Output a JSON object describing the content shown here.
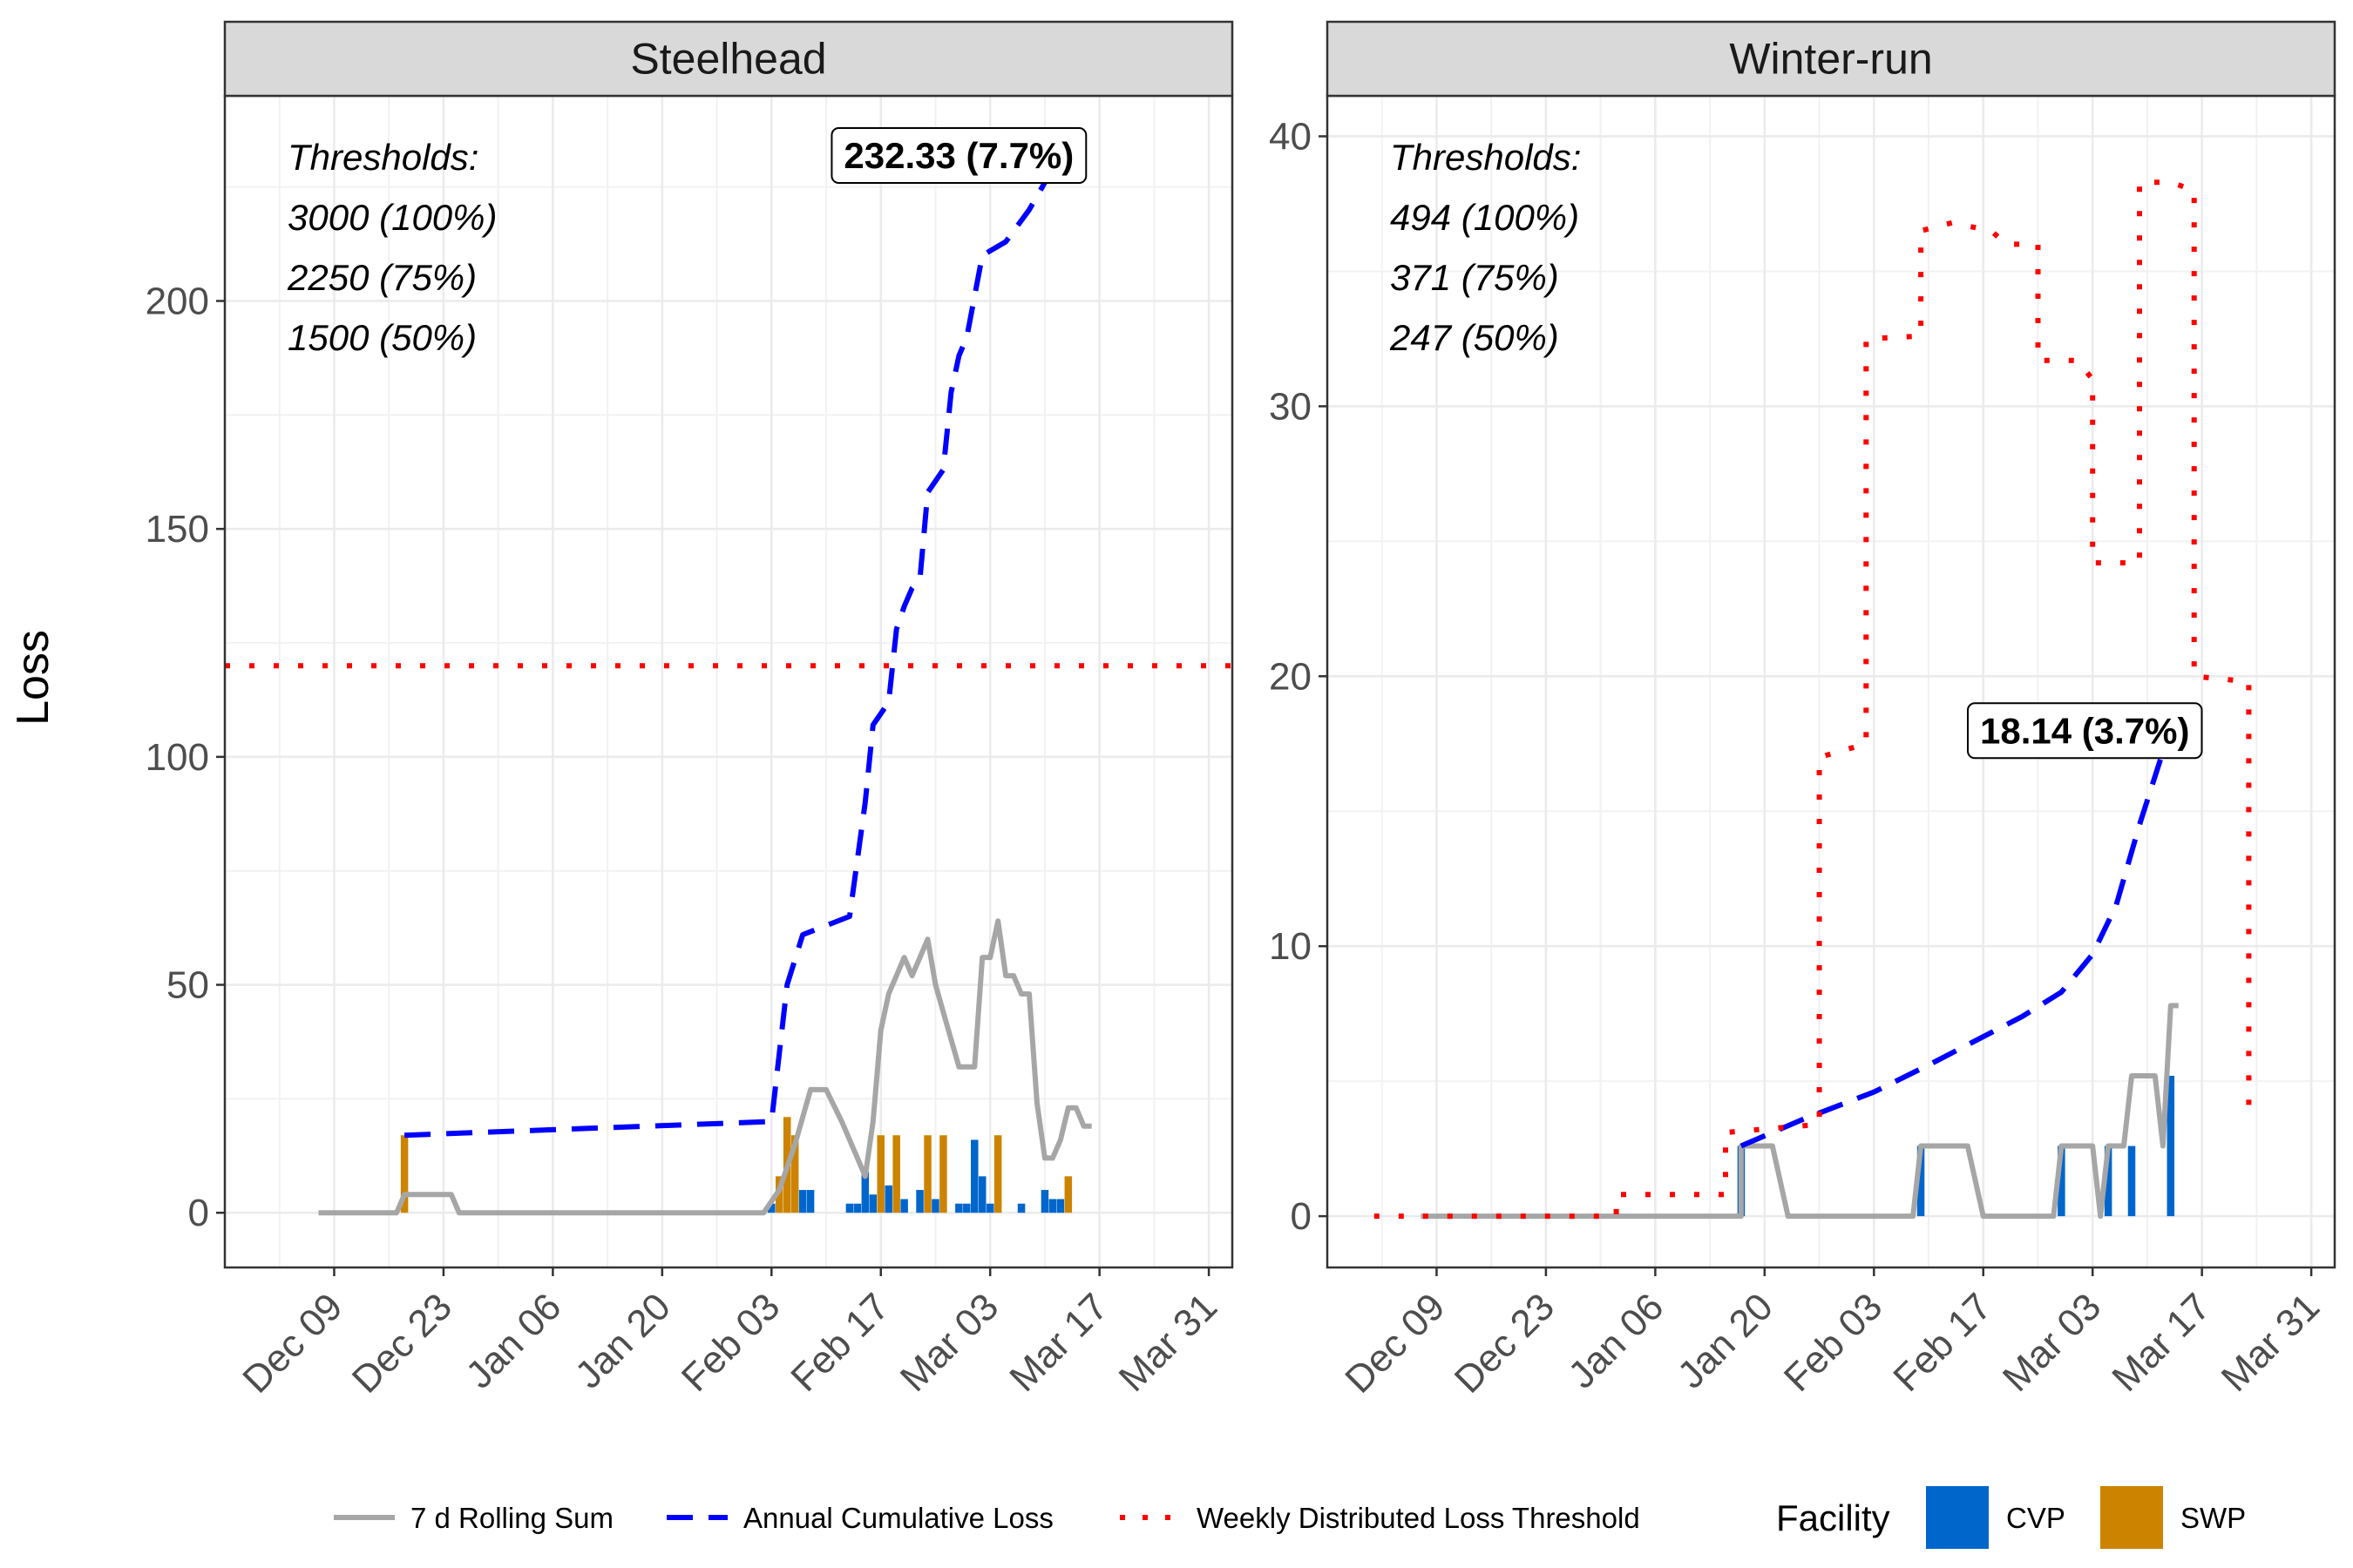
{
  "chart_data": [
    {
      "type": "line",
      "title": "Steelhead",
      "ylabel": "Loss",
      "ylim": [
        -12,
        245
      ],
      "xlim": [
        "2024-11-25",
        "2025-04-03"
      ],
      "yticks": [
        0,
        50,
        100,
        150,
        200
      ],
      "xtick_labels": [
        "Dec 09",
        "Dec 23",
        "Jan 06",
        "Jan 20",
        "Feb 03",
        "Feb 17",
        "Mar 03",
        "Mar 17",
        "Mar 31"
      ],
      "xtick_dates": [
        "2024-12-09",
        "2024-12-23",
        "2025-01-06",
        "2025-01-20",
        "2025-02-03",
        "2025-02-17",
        "2025-03-03",
        "2025-03-17",
        "2025-03-31"
      ],
      "grid": true,
      "threshold_text": [
        "Thresholds:",
        "3000 (100%)",
        "2250 (75%)",
        "1500 (50%)"
      ],
      "callout": {
        "label": "232.33 (7.7%)",
        "date": "2025-02-27",
        "value": 232
      },
      "series": [
        {
          "name": "7 d Rolling Sum",
          "style": "solid",
          "color": "#A6A6A6",
          "points": [
            [
              "2024-12-07",
              0
            ],
            [
              "2024-12-17",
              0
            ],
            [
              "2024-12-18",
              4
            ],
            [
              "2024-12-24",
              4
            ],
            [
              "2024-12-25",
              0
            ],
            [
              "2025-02-02",
              0
            ],
            [
              "2025-02-04",
              5
            ],
            [
              "2025-02-06",
              15
            ],
            [
              "2025-02-08",
              27
            ],
            [
              "2025-02-10",
              27
            ],
            [
              "2025-02-12",
              20
            ],
            [
              "2025-02-14",
              12
            ],
            [
              "2025-02-15",
              8
            ],
            [
              "2025-02-16",
              20
            ],
            [
              "2025-02-17",
              40
            ],
            [
              "2025-02-18",
              48
            ],
            [
              "2025-02-20",
              56
            ],
            [
              "2025-02-21",
              52
            ],
            [
              "2025-02-22",
              56
            ],
            [
              "2025-02-23",
              60
            ],
            [
              "2025-02-24",
              50
            ],
            [
              "2025-02-25",
              44
            ],
            [
              "2025-02-27",
              32
            ],
            [
              "2025-03-01",
              32
            ],
            [
              "2025-03-02",
              56
            ],
            [
              "2025-03-03",
              56
            ],
            [
              "2025-03-04",
              64
            ],
            [
              "2025-03-05",
              52
            ],
            [
              "2025-03-06",
              52
            ],
            [
              "2025-03-07",
              48
            ],
            [
              "2025-03-08",
              48
            ],
            [
              "2025-03-09",
              24
            ],
            [
              "2025-03-10",
              12
            ],
            [
              "2025-03-11",
              12
            ],
            [
              "2025-03-12",
              16
            ],
            [
              "2025-03-13",
              23
            ],
            [
              "2025-03-14",
              23
            ],
            [
              "2025-03-15",
              19
            ],
            [
              "2025-03-16",
              19
            ]
          ]
        },
        {
          "name": "Annual Cumulative Loss",
          "style": "dashed",
          "color": "#0000FF",
          "points": [
            [
              "2024-12-18",
              17
            ],
            [
              "2025-02-03",
              20
            ],
            [
              "2025-02-05",
              50
            ],
            [
              "2025-02-07",
              61
            ],
            [
              "2025-02-13",
              65
            ],
            [
              "2025-02-15",
              90
            ],
            [
              "2025-02-16",
              107
            ],
            [
              "2025-02-18",
              112
            ],
            [
              "2025-02-19",
              128
            ],
            [
              "2025-02-20",
              133
            ],
            [
              "2025-02-21",
              137
            ],
            [
              "2025-02-22",
              139
            ],
            [
              "2025-02-23",
              158
            ],
            [
              "2025-02-25",
              163
            ],
            [
              "2025-02-26",
              180
            ],
            [
              "2025-02-27",
              188
            ],
            [
              "2025-02-28",
              192
            ],
            [
              "2025-03-02",
              210
            ],
            [
              "2025-03-05",
              213
            ],
            [
              "2025-03-08",
              220
            ],
            [
              "2025-03-12",
              232
            ]
          ]
        },
        {
          "name": "Weekly Distributed Loss Threshold",
          "style": "dotted",
          "color": "#FF0000",
          "points": [
            [
              "2024-11-25",
              120
            ],
            [
              "2025-04-03",
              120
            ]
          ]
        }
      ],
      "bars": [
        {
          "facility": "SWP",
          "date": "2024-12-18",
          "value": 17
        },
        {
          "facility": "CVP",
          "date": "2025-02-03",
          "value": 2
        },
        {
          "facility": "SWP",
          "date": "2025-02-04",
          "value": 8
        },
        {
          "facility": "SWP",
          "date": "2025-02-05",
          "value": 21
        },
        {
          "facility": "SWP",
          "date": "2025-02-06",
          "value": 17
        },
        {
          "facility": "CVP",
          "date": "2025-02-07",
          "value": 5
        },
        {
          "facility": "CVP",
          "date": "2025-02-08",
          "value": 5
        },
        {
          "facility": "CVP",
          "date": "2025-02-13",
          "value": 2
        },
        {
          "facility": "CVP",
          "date": "2025-02-14",
          "value": 2
        },
        {
          "facility": "CVP",
          "date": "2025-02-15",
          "value": 9
        },
        {
          "facility": "CVP",
          "date": "2025-02-16",
          "value": 4
        },
        {
          "facility": "SWP",
          "date": "2025-02-17",
          "value": 17
        },
        {
          "facility": "CVP",
          "date": "2025-02-18",
          "value": 6
        },
        {
          "facility": "SWP",
          "date": "2025-02-19",
          "value": 17
        },
        {
          "facility": "CVP",
          "date": "2025-02-20",
          "value": 3
        },
        {
          "facility": "CVP",
          "date": "2025-02-22",
          "value": 5
        },
        {
          "facility": "SWP",
          "date": "2025-02-23",
          "value": 17
        },
        {
          "facility": "CVP",
          "date": "2025-02-24",
          "value": 3
        },
        {
          "facility": "SWP",
          "date": "2025-02-25",
          "value": 17
        },
        {
          "facility": "CVP",
          "date": "2025-02-27",
          "value": 2
        },
        {
          "facility": "CVP",
          "date": "2025-02-28",
          "value": 2
        },
        {
          "facility": "CVP",
          "date": "2025-03-01",
          "value": 16
        },
        {
          "facility": "CVP",
          "date": "2025-03-02",
          "value": 8
        },
        {
          "facility": "CVP",
          "date": "2025-03-03",
          "value": 2
        },
        {
          "facility": "SWP",
          "date": "2025-03-04",
          "value": 17
        },
        {
          "facility": "CVP",
          "date": "2025-03-07",
          "value": 2
        },
        {
          "facility": "CVP",
          "date": "2025-03-10",
          "value": 5
        },
        {
          "facility": "CVP",
          "date": "2025-03-11",
          "value": 3
        },
        {
          "facility": "CVP",
          "date": "2025-03-12",
          "value": 3
        },
        {
          "facility": "SWP",
          "date": "2025-03-13",
          "value": 8
        }
      ]
    },
    {
      "type": "line",
      "title": "Winter-run",
      "ylim": [
        -1.9,
        41.5
      ],
      "xlim": [
        "2024-11-25",
        "2025-04-03"
      ],
      "yticks": [
        0,
        10,
        20,
        30,
        40
      ],
      "xtick_labels": [
        "Dec 09",
        "Dec 23",
        "Jan 06",
        "Jan 20",
        "Feb 03",
        "Feb 17",
        "Mar 03",
        "Mar 17",
        "Mar 31"
      ],
      "xtick_dates": [
        "2024-12-09",
        "2024-12-23",
        "2025-01-06",
        "2025-01-20",
        "2025-02-03",
        "2025-02-17",
        "2025-03-03",
        "2025-03-17",
        "2025-03-31"
      ],
      "grid": true,
      "threshold_text": [
        "Thresholds:",
        "494 (100%)",
        "371 (75%)",
        "247 (50%)"
      ],
      "callout": {
        "label": "18.14 (3.7%)",
        "date": "2025-03-02",
        "value": 18
      },
      "series": [
        {
          "name": "7 d Rolling Sum",
          "style": "solid",
          "color": "#A6A6A6",
          "points": [
            [
              "2024-12-07",
              0
            ],
            [
              "2025-01-17",
              0
            ],
            [
              "2025-01-17",
              2.6
            ],
            [
              "2025-01-21",
              2.6
            ],
            [
              "2025-01-23",
              0
            ],
            [
              "2025-02-08",
              0
            ],
            [
              "2025-02-09",
              2.6
            ],
            [
              "2025-02-15",
              2.6
            ],
            [
              "2025-02-17",
              0
            ],
            [
              "2025-02-26",
              0
            ],
            [
              "2025-02-27",
              2.6
            ],
            [
              "2025-03-03",
              2.6
            ],
            [
              "2025-03-04",
              0
            ],
            [
              "2025-03-05",
              2.6
            ],
            [
              "2025-03-07",
              2.6
            ],
            [
              "2025-03-08",
              5.2
            ],
            [
              "2025-03-11",
              5.2
            ],
            [
              "2025-03-12",
              2.6
            ],
            [
              "2025-03-13",
              7.8
            ],
            [
              "2025-03-14",
              7.8
            ]
          ]
        },
        {
          "name": "Annual Cumulative Loss",
          "style": "dashed",
          "color": "#0000FF",
          "points": [
            [
              "2025-01-17",
              2.6
            ],
            [
              "2025-01-25",
              3.6
            ],
            [
              "2025-02-03",
              4.6
            ],
            [
              "2025-02-10",
              5.6
            ],
            [
              "2025-02-16",
              6.5
            ],
            [
              "2025-02-22",
              7.4
            ],
            [
              "2025-02-27",
              8.3
            ],
            [
              "2025-03-03",
              9.7
            ],
            [
              "2025-03-06",
              11.5
            ],
            [
              "2025-03-09",
              14.5
            ],
            [
              "2025-03-13",
              18.1
            ]
          ]
        },
        {
          "name": "Weekly Distributed Loss Threshold",
          "style": "dotted",
          "color": "#FF0000",
          "points": [
            [
              "2024-12-01",
              0
            ],
            [
              "2025-01-01",
              0
            ],
            [
              "2025-01-01",
              0.8
            ],
            [
              "2025-01-15",
              0.8
            ],
            [
              "2025-01-15",
              3.1
            ],
            [
              "2025-01-27",
              3.4
            ],
            [
              "2025-01-27",
              17.0
            ],
            [
              "2025-02-02",
              17.5
            ],
            [
              "2025-02-02",
              32.5
            ],
            [
              "2025-02-09",
              32.6
            ],
            [
              "2025-02-09",
              36.5
            ],
            [
              "2025-02-13",
              36.8
            ],
            [
              "2025-02-18",
              36.5
            ],
            [
              "2025-02-20",
              36.0
            ],
            [
              "2025-02-24",
              36.0
            ],
            [
              "2025-02-24",
              31.7
            ],
            [
              "2025-03-01",
              31.7
            ],
            [
              "2025-03-03",
              31.0
            ],
            [
              "2025-03-03",
              24.2
            ],
            [
              "2025-03-09",
              24.2
            ],
            [
              "2025-03-09",
              38.3
            ],
            [
              "2025-03-13",
              38.3
            ],
            [
              "2025-03-16",
              38.0
            ],
            [
              "2025-03-16",
              20.0
            ],
            [
              "2025-03-23",
              19.8
            ],
            [
              "2025-03-23",
              3.5
            ]
          ]
        }
      ],
      "bars": [
        {
          "facility": "CVP",
          "date": "2025-01-17",
          "value": 2.6
        },
        {
          "facility": "CVP",
          "date": "2025-02-09",
          "value": 2.6
        },
        {
          "facility": "CVP",
          "date": "2025-02-27",
          "value": 2.6
        },
        {
          "facility": "CVP",
          "date": "2025-03-05",
          "value": 2.6
        },
        {
          "facility": "CVP",
          "date": "2025-03-08",
          "value": 2.6
        },
        {
          "facility": "CVP",
          "date": "2025-03-13",
          "value": 5.2
        }
      ]
    }
  ],
  "legend": {
    "lines": [
      {
        "label": "7 d Rolling Sum",
        "style": "solid",
        "color": "#A6A6A6"
      },
      {
        "label": "Annual Cumulative Loss",
        "style": "dashed",
        "color": "#0000FF"
      },
      {
        "label": "Weekly Distributed Loss Threshold",
        "style": "dotted",
        "color": "#FF0000"
      }
    ],
    "facility_title": "Facility",
    "facilities": [
      {
        "label": "CVP",
        "color": "#0066CC"
      },
      {
        "label": "SWP",
        "color": "#CC8400"
      }
    ]
  }
}
